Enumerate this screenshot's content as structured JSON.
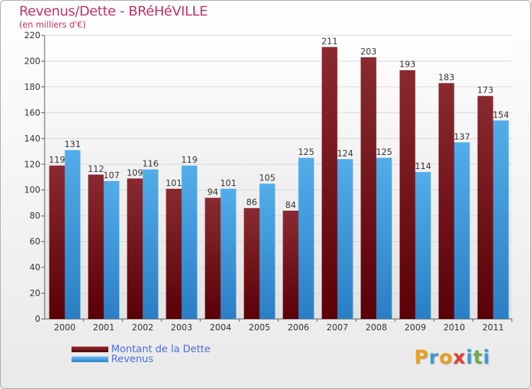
{
  "chart_data": {
    "type": "bar",
    "title": "Revenus/Dette - BRéHéVILLE",
    "subtitle": "(en milliers d'€)",
    "categories": [
      "2000",
      "2001",
      "2002",
      "2003",
      "2004",
      "2005",
      "2006",
      "2007",
      "2008",
      "2009",
      "2010",
      "2011"
    ],
    "series": [
      {
        "name": "Montant de la Dette",
        "color": "#7a1a1e",
        "values": [
          119,
          112,
          109,
          101,
          94,
          86,
          84,
          211,
          203,
          193,
          183,
          173
        ]
      },
      {
        "name": "Revenus",
        "color": "#4aa0e0",
        "values": [
          131,
          107,
          116,
          119,
          101,
          105,
          125,
          124,
          125,
          114,
          137,
          154
        ]
      }
    ],
    "ylim": [
      0,
      220
    ],
    "yticks": [
      0,
      20,
      40,
      60,
      80,
      100,
      120,
      140,
      160,
      180,
      200,
      220
    ],
    "grid": true,
    "legend_position": "bottom-left"
  },
  "logo": {
    "letters": [
      "P",
      "r",
      "o",
      "x",
      "i",
      "t",
      "i"
    ],
    "colors": [
      "#e8a020",
      "#3a9ad9",
      "#e8a020",
      "#e23b2e",
      "#3a9ad9",
      "#6ab04c",
      "#3a9ad9"
    ]
  }
}
